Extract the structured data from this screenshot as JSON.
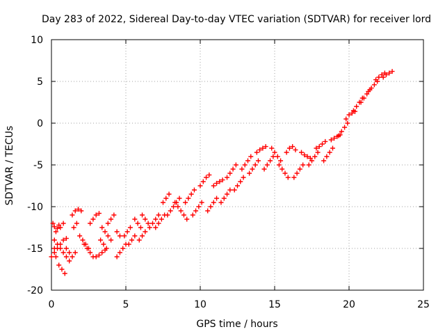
{
  "chart_data": {
    "type": "scatter",
    "title": "Day 283 of 2022, Sidereal Day-to-day VTEC variation (SDTVAR) for receiver lord",
    "xlabel": "GPS time / hours",
    "ylabel": "SDTVAR / TECUs",
    "xlim": [
      0,
      25
    ],
    "ylim": [
      -20,
      10
    ],
    "xticks": [
      0,
      5,
      10,
      15,
      20,
      25
    ],
    "yticks": [
      -20,
      -15,
      -10,
      -5,
      0,
      5,
      10
    ],
    "grid": true,
    "marker": "+",
    "color": "#ff0000",
    "series": [
      {
        "name": "SDTVAR",
        "x": [
          0.1,
          0.2,
          0.3,
          0.4,
          0.5,
          0.6,
          0.8,
          0.2,
          0.3,
          0.5,
          0.7,
          0.9,
          0.0,
          0.2,
          0.4,
          0.6,
          0.8,
          1.0,
          0.2,
          0.4,
          0.6,
          0.8,
          1.0,
          1.2,
          1.5,
          1.7,
          1.4,
          1.6,
          1.8,
          2.0,
          1.9,
          2.1,
          2.3,
          2.5,
          1.0,
          1.2,
          1.4,
          1.6,
          2.2,
          2.4,
          2.6,
          2.8,
          2.6,
          2.8,
          3.0,
          3.2,
          3.0,
          3.2,
          3.4,
          3.6,
          3.3,
          3.5,
          3.7,
          3.4,
          3.6,
          3.8,
          4.0,
          3.8,
          4.0,
          4.2,
          4.4,
          4.6,
          4.4,
          4.6,
          4.8,
          5.0,
          4.9,
          5.1,
          5.3,
          5.2,
          5.4,
          5.6,
          5.6,
          5.8,
          6.0,
          5.9,
          6.1,
          6.3,
          6.1,
          6.3,
          6.5,
          6.6,
          6.8,
          7.0,
          7.2,
          7.0,
          7.2,
          7.4,
          7.6,
          7.5,
          7.7,
          7.9,
          7.8,
          8.0,
          8.2,
          8.4,
          8.6,
          8.3,
          8.5,
          8.7,
          8.9,
          9.1,
          9.0,
          9.2,
          9.4,
          9.6,
          9.5,
          9.7,
          9.9,
          10.1,
          10.0,
          10.2,
          10.4,
          10.6,
          10.5,
          10.7,
          10.9,
          11.1,
          10.9,
          11.1,
          11.3,
          11.5,
          11.4,
          11.6,
          11.8,
          12.0,
          11.8,
          12.0,
          12.2,
          12.4,
          12.3,
          12.5,
          12.7,
          12.9,
          12.8,
          13.0,
          13.2,
          13.4,
          13.3,
          13.5,
          13.7,
          13.9,
          13.8,
          14.0,
          14.2,
          14.4,
          14.3,
          14.5,
          14.7,
          14.9,
          14.8,
          15.0,
          15.2,
          15.4,
          15.3,
          15.5,
          15.7,
          15.9,
          15.8,
          16.0,
          16.2,
          16.4,
          16.3,
          16.5,
          16.7,
          16.9,
          16.8,
          17.0,
          17.2,
          17.4,
          17.3,
          17.5,
          17.7,
          17.9,
          17.8,
          18.0,
          18.2,
          18.4,
          18.3,
          18.5,
          18.7,
          18.9,
          18.8,
          19.0,
          19.2,
          19.4,
          19.3,
          19.5,
          19.7,
          19.9,
          19.8,
          20.0,
          20.2,
          20.4,
          20.3,
          20.5,
          20.7,
          20.9,
          20.8,
          21.0,
          21.2,
          21.4,
          21.3,
          21.5,
          21.7,
          21.9,
          21.8,
          22.0,
          22.2,
          22.4,
          22.3,
          22.5,
          22.7,
          22.9
        ],
        "y": [
          -12.0,
          -12.4,
          -13.0,
          -12.6,
          -12.2,
          -12.5,
          -12.0,
          -15.0,
          -16.0,
          -17.0,
          -17.5,
          -18.0,
          -16.0,
          -15.5,
          -15.0,
          -14.5,
          -14.0,
          -13.8,
          -14.0,
          -14.5,
          -15.0,
          -15.5,
          -16.0,
          -16.5,
          -12.5,
          -12.0,
          -11.0,
          -10.5,
          -10.3,
          -10.5,
          -13.5,
          -14.0,
          -14.5,
          -15.0,
          -15.0,
          -15.5,
          -16.0,
          -15.5,
          -14.5,
          -15.0,
          -15.5,
          -16.0,
          -12.0,
          -11.5,
          -11.0,
          -10.8,
          -16.0,
          -15.8,
          -15.5,
          -15.2,
          -14.0,
          -14.5,
          -15.0,
          -12.5,
          -13.0,
          -13.5,
          -14.0,
          -12.0,
          -11.5,
          -11.0,
          -13.0,
          -13.5,
          -16.0,
          -15.5,
          -15.0,
          -14.5,
          -13.5,
          -13.0,
          -12.5,
          -14.5,
          -14.0,
          -13.5,
          -11.5,
          -12.0,
          -12.5,
          -14.0,
          -13.5,
          -13.0,
          -11.0,
          -11.5,
          -12.0,
          -12.5,
          -12.0,
          -11.5,
          -11.0,
          -12.5,
          -12.0,
          -11.5,
          -11.0,
          -9.5,
          -9.0,
          -8.5,
          -11.0,
          -10.5,
          -10.0,
          -9.5,
          -9.0,
          -9.5,
          -10.0,
          -10.5,
          -11.0,
          -11.5,
          -9.5,
          -9.0,
          -8.5,
          -8.0,
          -11.0,
          -10.5,
          -10.0,
          -9.5,
          -7.5,
          -7.0,
          -6.5,
          -6.2,
          -10.5,
          -10.0,
          -9.5,
          -9.0,
          -7.5,
          -7.2,
          -7.0,
          -6.8,
          -9.5,
          -9.0,
          -8.5,
          -8.0,
          -6.5,
          -6.0,
          -5.5,
          -5.0,
          -8.0,
          -7.5,
          -7.0,
          -6.5,
          -5.5,
          -5.0,
          -4.5,
          -4.0,
          -6.0,
          -5.5,
          -5.0,
          -4.5,
          -3.5,
          -3.2,
          -3.0,
          -2.8,
          -5.5,
          -5.0,
          -4.5,
          -4.0,
          -3.0,
          -3.5,
          -4.0,
          -4.5,
          -5.0,
          -5.5,
          -6.0,
          -6.5,
          -3.5,
          -3.0,
          -2.8,
          -3.2,
          -6.5,
          -6.0,
          -5.5,
          -5.0,
          -3.5,
          -3.8,
          -4.0,
          -4.2,
          -5.0,
          -4.5,
          -4.0,
          -3.5,
          -3.0,
          -2.8,
          -2.5,
          -2.2,
          -4.5,
          -4.0,
          -3.5,
          -3.0,
          -2.0,
          -1.8,
          -1.6,
          -1.4,
          -1.5,
          -1.0,
          -0.5,
          0.0,
          0.5,
          1.0,
          1.2,
          1.4,
          1.5,
          2.0,
          2.5,
          3.0,
          2.5,
          3.0,
          3.5,
          4.0,
          3.8,
          4.2,
          4.6,
          5.0,
          5.2,
          5.5,
          5.8,
          6.0,
          5.5,
          5.8,
          6.0,
          6.2
        ]
      }
    ]
  }
}
